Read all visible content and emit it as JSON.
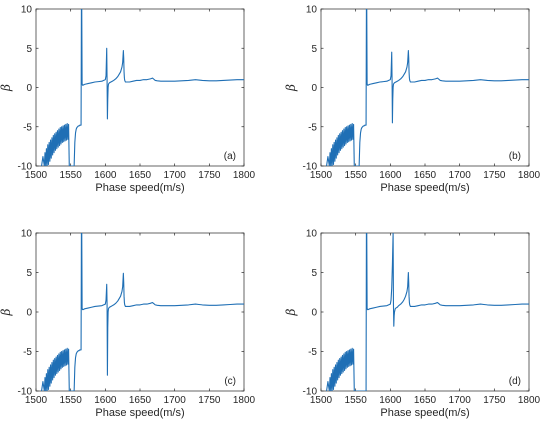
{
  "colors": {
    "series": "#1f6fb5",
    "axis": "#262626",
    "background": "#ffffff"
  },
  "chart_data": [
    {
      "type": "line",
      "panel_label": "(a)",
      "xlabel": "Phase speed(m/s)",
      "ylabel": "β",
      "xlim": [
        1500,
        1800
      ],
      "ylim": [
        -10,
        10
      ],
      "xticks": [
        1500,
        1550,
        1600,
        1650,
        1700,
        1750,
        1800
      ],
      "yticks": [
        -10,
        -5,
        0,
        5,
        10
      ],
      "grid": false,
      "series": [
        {
          "x": [
            1508,
            1510,
            1512,
            1513,
            1514,
            1515,
            1516,
            1517,
            1518,
            1519,
            1520,
            1521,
            1522,
            1523,
            1524,
            1525,
            1526,
            1527,
            1528,
            1529,
            1530,
            1531,
            1532,
            1533,
            1534,
            1535,
            1536,
            1537,
            1538,
            1539,
            1540,
            1541,
            1542,
            1543,
            1544,
            1545,
            1546,
            1547,
            1548,
            1549,
            1550,
            1551,
            1552,
            1553,
            1554,
            1555,
            1556,
            1557,
            1558,
            1559,
            1560,
            1561,
            1562,
            1563,
            1564,
            1565,
            1565.5,
            1566,
            1566.5,
            1567,
            1568,
            1570,
            1575,
            1580,
            1585,
            1590,
            1595,
            1600,
            1601,
            1602,
            1602.5,
            1603,
            1603.5,
            1604,
            1604.5,
            1605,
            1606,
            1608,
            1610,
            1612,
            1615,
            1618,
            1620,
            1622,
            1624,
            1625,
            1626,
            1626.5,
            1627,
            1627.5,
            1628,
            1629,
            1630,
            1632,
            1635,
            1640,
            1645,
            1650,
            1655,
            1660,
            1665,
            1668,
            1670,
            1672,
            1675,
            1680,
            1690,
            1700,
            1710,
            1720,
            1730,
            1735,
            1740,
            1750,
            1760,
            1770,
            1780,
            1790,
            1800
          ],
          "y": [
            -10,
            -8.8,
            -10,
            -8.3,
            -10,
            -7.8,
            -10,
            -7.3,
            -9.8,
            -7,
            -9.4,
            -6.7,
            -9,
            -6.4,
            -8.6,
            -6.1,
            -8.3,
            -5.9,
            -8,
            -5.7,
            -7.8,
            -5.5,
            -7.6,
            -5.3,
            -7.4,
            -5.1,
            -7.2,
            -5,
            -7,
            -4.9,
            -6.9,
            -4.8,
            -6.8,
            -4.7,
            -6.7,
            -4.6,
            -6.6,
            -4.7,
            -10,
            -10,
            -10,
            -10,
            -10,
            -10,
            -10,
            -10,
            -7,
            -5.8,
            -5.3,
            -5.1,
            -5,
            -4.9,
            -4.9,
            -4.8,
            -4.8,
            -4.8,
            10,
            10,
            0.5,
            0.3,
            0.3,
            0.4,
            0.5,
            0.6,
            0.7,
            0.75,
            0.8,
            1,
            1.5,
            5,
            1,
            -4,
            -1.5,
            0,
            0.4,
            0.5,
            0.6,
            0.7,
            0.8,
            0.9,
            1.1,
            1.4,
            1.7,
            2,
            2.6,
            3.2,
            4.7,
            3.8,
            2,
            1.2,
            0.9,
            0.7,
            0.7,
            0.7,
            0.7,
            0.8,
            0.9,
            0.9,
            1,
            1,
            1.1,
            1.2,
            1.05,
            0.9,
            0.85,
            0.8,
            0.8,
            0.8,
            0.85,
            0.9,
            1,
            0.95,
            0.9,
            0.85,
            0.85,
            0.9,
            0.95,
            1,
            1
          ]
        }
      ]
    },
    {
      "type": "line",
      "panel_label": "(b)",
      "xlabel": "Phase speed(m/s)",
      "ylabel": "β",
      "xlim": [
        1500,
        1800
      ],
      "ylim": [
        -10,
        10
      ],
      "xticks": [
        1500,
        1550,
        1600,
        1650,
        1700,
        1750,
        1800
      ],
      "yticks": [
        -10,
        -5,
        0,
        5,
        10
      ],
      "grid": false,
      "series": [
        {
          "x": [
            1508,
            1510,
            1512,
            1513,
            1514,
            1515,
            1516,
            1517,
            1518,
            1519,
            1520,
            1521,
            1522,
            1523,
            1524,
            1525,
            1526,
            1527,
            1528,
            1529,
            1530,
            1531,
            1532,
            1533,
            1534,
            1535,
            1536,
            1537,
            1538,
            1539,
            1540,
            1541,
            1542,
            1543,
            1544,
            1545,
            1546,
            1547,
            1548,
            1549,
            1550,
            1551,
            1552,
            1553,
            1554,
            1555,
            1556,
            1557,
            1558,
            1559,
            1560,
            1561,
            1562,
            1563,
            1564,
            1565,
            1565.5,
            1566,
            1566.5,
            1567,
            1568,
            1570,
            1575,
            1580,
            1585,
            1590,
            1595,
            1600,
            1601,
            1602,
            1602.5,
            1603,
            1603.5,
            1604,
            1604.5,
            1605,
            1606,
            1608,
            1610,
            1612,
            1615,
            1618,
            1620,
            1622,
            1624,
            1625,
            1626,
            1626.5,
            1627,
            1627.5,
            1628,
            1629,
            1630,
            1632,
            1635,
            1640,
            1645,
            1650,
            1655,
            1660,
            1665,
            1668,
            1670,
            1672,
            1675,
            1680,
            1690,
            1700,
            1710,
            1720,
            1730,
            1735,
            1740,
            1750,
            1760,
            1770,
            1780,
            1790,
            1800
          ],
          "y": [
            -10,
            -8.8,
            -10,
            -8.3,
            -10,
            -7.8,
            -10,
            -7.3,
            -9.8,
            -7,
            -9.4,
            -6.7,
            -9,
            -6.4,
            -8.6,
            -6.1,
            -8.3,
            -5.9,
            -8,
            -5.7,
            -7.8,
            -5.5,
            -7.6,
            -5.3,
            -7.4,
            -5.1,
            -7.2,
            -5,
            -7,
            -4.9,
            -6.9,
            -4.8,
            -6.8,
            -4.7,
            -6.7,
            -4.6,
            -6.6,
            -4.7,
            -10,
            -10,
            -10,
            -10,
            -10,
            -10,
            -10,
            -10,
            -7,
            -5.8,
            -5.3,
            -5.1,
            -5,
            -4.9,
            -4.9,
            -4.8,
            -4.8,
            -4.8,
            10,
            10,
            0.5,
            0.3,
            0.3,
            0.4,
            0.5,
            0.6,
            0.7,
            0.75,
            0.8,
            1,
            1.5,
            4.5,
            1,
            -4.5,
            -1.5,
            0,
            0.4,
            0.5,
            0.6,
            0.7,
            0.8,
            0.9,
            1.1,
            1.4,
            1.7,
            2,
            2.6,
            3.2,
            4.7,
            3.8,
            2,
            1.2,
            0.9,
            0.7,
            0.7,
            0.7,
            0.7,
            0.8,
            0.9,
            0.9,
            1,
            1,
            1.1,
            1.2,
            1.05,
            0.9,
            0.85,
            0.8,
            0.8,
            0.8,
            0.85,
            0.9,
            1,
            0.95,
            0.9,
            0.85,
            0.85,
            0.9,
            0.95,
            1,
            1
          ]
        }
      ]
    },
    {
      "type": "line",
      "panel_label": "(c)",
      "xlabel": "Phase speed(m/s)",
      "ylabel": "β",
      "xlim": [
        1500,
        1800
      ],
      "ylim": [
        -10,
        10
      ],
      "xticks": [
        1500,
        1550,
        1600,
        1650,
        1700,
        1750,
        1800
      ],
      "yticks": [
        -10,
        -5,
        0,
        5,
        10
      ],
      "grid": false,
      "series": [
        {
          "x": [
            1508,
            1510,
            1512,
            1513,
            1514,
            1515,
            1516,
            1517,
            1518,
            1519,
            1520,
            1521,
            1522,
            1523,
            1524,
            1525,
            1526,
            1527,
            1528,
            1529,
            1530,
            1531,
            1532,
            1533,
            1534,
            1535,
            1536,
            1537,
            1538,
            1539,
            1540,
            1541,
            1542,
            1543,
            1544,
            1545,
            1546,
            1547,
            1548,
            1549,
            1550,
            1551,
            1552,
            1553,
            1554,
            1555,
            1556,
            1557,
            1558,
            1559,
            1560,
            1561,
            1562,
            1563,
            1564,
            1565,
            1565.5,
            1566,
            1566.5,
            1567,
            1568,
            1570,
            1575,
            1580,
            1585,
            1590,
            1595,
            1600,
            1601,
            1602,
            1602.5,
            1603,
            1603.5,
            1604,
            1604.5,
            1605,
            1606,
            1608,
            1610,
            1612,
            1615,
            1618,
            1620,
            1622,
            1624,
            1625,
            1626,
            1626.5,
            1627,
            1627.5,
            1628,
            1629,
            1630,
            1632,
            1635,
            1640,
            1645,
            1650,
            1655,
            1660,
            1665,
            1668,
            1670,
            1672,
            1675,
            1680,
            1690,
            1700,
            1710,
            1720,
            1730,
            1735,
            1740,
            1750,
            1760,
            1770,
            1780,
            1790,
            1800
          ],
          "y": [
            -10,
            -8.8,
            -10,
            -8.3,
            -10,
            -7.8,
            -10,
            -7.3,
            -9.8,
            -7,
            -9.4,
            -6.7,
            -9,
            -6.4,
            -8.6,
            -6.1,
            -8.3,
            -5.9,
            -8,
            -5.7,
            -7.8,
            -5.5,
            -7.6,
            -5.3,
            -7.4,
            -5.1,
            -7.2,
            -5,
            -7,
            -4.9,
            -6.9,
            -4.8,
            -6.8,
            -4.7,
            -6.7,
            -4.6,
            -6.6,
            -4.7,
            -10,
            -10,
            -10,
            -10,
            -10,
            -10,
            -10,
            -10,
            -7,
            -5.8,
            -5.3,
            -5.1,
            -5,
            -4.9,
            -4.9,
            -4.8,
            -4.8,
            -4.8,
            10,
            10,
            0.5,
            0.3,
            0.3,
            0.4,
            0.5,
            0.6,
            0.7,
            0.75,
            0.8,
            1,
            1.5,
            3.5,
            1,
            -8,
            -2,
            0,
            0.4,
            0.5,
            0.6,
            0.7,
            0.8,
            0.9,
            1.1,
            1.4,
            1.7,
            2,
            2.6,
            3.2,
            4.9,
            3.8,
            2,
            1.2,
            0.9,
            0.7,
            0.7,
            0.7,
            0.7,
            0.8,
            0.9,
            0.9,
            1,
            1,
            1.1,
            1.2,
            1.05,
            0.9,
            0.85,
            0.8,
            0.8,
            0.8,
            0.85,
            0.9,
            1,
            0.95,
            0.9,
            0.85,
            0.85,
            0.9,
            0.95,
            1,
            1
          ]
        }
      ]
    },
    {
      "type": "line",
      "panel_label": "(d)",
      "xlabel": "Phase speed(m/s)",
      "ylabel": "β",
      "xlim": [
        1500,
        1800
      ],
      "ylim": [
        -10,
        10
      ],
      "xticks": [
        1500,
        1550,
        1600,
        1650,
        1700,
        1750,
        1800
      ],
      "yticks": [
        -10,
        -5,
        0,
        5,
        10
      ],
      "grid": false,
      "series": [
        {
          "x": [
            1508,
            1510,
            1512,
            1513,
            1514,
            1515,
            1516,
            1517,
            1518,
            1519,
            1520,
            1521,
            1522,
            1523,
            1524,
            1525,
            1526,
            1527,
            1528,
            1529,
            1530,
            1531,
            1532,
            1533,
            1534,
            1535,
            1536,
            1537,
            1538,
            1539,
            1540,
            1541,
            1542,
            1543,
            1544,
            1545,
            1546,
            1547,
            1548,
            1549,
            1550,
            1551,
            1552,
            1553,
            1554,
            1555,
            1556,
            1557,
            1558,
            1559,
            1560,
            1561,
            1562,
            1563,
            1564,
            1565,
            1565.5,
            1566,
            1566.5,
            1567,
            1568,
            1570,
            1575,
            1580,
            1585,
            1590,
            1595,
            1600,
            1601,
            1602,
            1603,
            1604,
            1604.5,
            1605,
            1605.5,
            1606,
            1607,
            1608,
            1610,
            1612,
            1615,
            1618,
            1620,
            1622,
            1624,
            1625,
            1626,
            1626.5,
            1627,
            1627.5,
            1628,
            1629,
            1630,
            1632,
            1635,
            1640,
            1645,
            1650,
            1655,
            1660,
            1665,
            1668,
            1670,
            1672,
            1675,
            1680,
            1690,
            1700,
            1710,
            1720,
            1730,
            1735,
            1740,
            1750,
            1760,
            1770,
            1780,
            1790,
            1800
          ],
          "y": [
            -10,
            -8.8,
            -10,
            -8.3,
            -10,
            -7.8,
            -10,
            -7.3,
            -9.8,
            -7,
            -9.4,
            -6.7,
            -9,
            -6.4,
            -8.6,
            -6.1,
            -8.3,
            -5.9,
            -8,
            -5.7,
            -7.8,
            -5.5,
            -7.6,
            -5.3,
            -7.4,
            -5.1,
            -7.2,
            -5,
            -7,
            -4.9,
            -6.9,
            -4.8,
            -6.8,
            -4.7,
            -6.7,
            -4.6,
            -6.6,
            -4.7,
            -10,
            -10,
            -10,
            -10,
            -10,
            -10,
            -10,
            -10,
            -10,
            -10,
            -10,
            -10,
            -10,
            -10,
            -10,
            -10,
            -10,
            -10,
            10,
            10,
            0.5,
            0.3,
            0.3,
            0.4,
            0.5,
            0.6,
            0.7,
            0.75,
            0.8,
            1,
            1.5,
            3,
            6,
            10,
            1,
            -1.8,
            -0.5,
            0,
            0.4,
            0.5,
            0.6,
            0.8,
            1,
            1.3,
            1.6,
            2,
            2.6,
            3.2,
            5,
            3.8,
            2,
            1.2,
            0.9,
            0.7,
            0.7,
            0.7,
            0.7,
            0.8,
            0.9,
            0.9,
            1,
            1,
            1.1,
            1.2,
            1.05,
            0.9,
            0.85,
            0.8,
            0.8,
            0.8,
            0.85,
            0.9,
            1,
            0.95,
            0.9,
            0.85,
            0.85,
            0.9,
            0.95,
            1,
            1
          ]
        }
      ]
    }
  ]
}
